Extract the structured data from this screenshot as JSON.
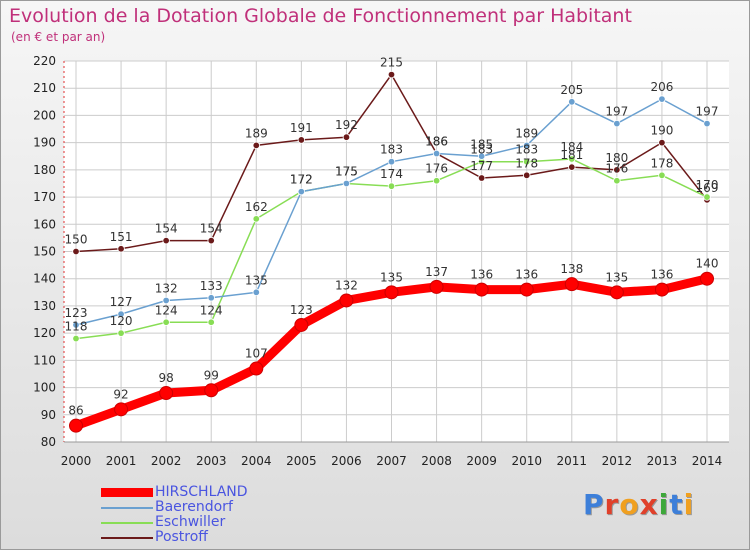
{
  "header": {
    "title": "Evolution de la Dotation Globale de Fonctionnement par Habitant",
    "subtitle": "(en € et par an)"
  },
  "logo": {
    "text": "Proxiti",
    "letters": [
      "P",
      "r",
      "o",
      "x",
      "i",
      "t",
      "i"
    ],
    "colors": [
      "#3d7fd9",
      "#e0402a",
      "#f0a020",
      "#e0402a",
      "#3da83a",
      "#3d7fd9",
      "#f0a020"
    ]
  },
  "chart_data": {
    "type": "line",
    "title": "Evolution de la Dotation Globale de Fonctionnement par Habitant",
    "subtitle": "(en € et par an)",
    "x": [
      2000,
      2001,
      2002,
      2003,
      2004,
      2005,
      2006,
      2007,
      2008,
      2009,
      2010,
      2011,
      2012,
      2013,
      2014
    ],
    "ylim": [
      80,
      220
    ],
    "yticks": [
      80,
      90,
      100,
      110,
      120,
      130,
      140,
      150,
      160,
      170,
      180,
      190,
      200,
      210,
      220
    ],
    "grid": true,
    "legend_position": "bottom-left",
    "series": [
      {
        "name": "Postroff",
        "color": "#6b1a1a",
        "values": [
          150,
          151,
          154,
          154,
          189,
          191,
          192,
          215,
          186,
          177,
          178,
          181,
          180,
          190,
          169
        ]
      },
      {
        "name": "Eschwiller",
        "color": "#88dd55",
        "values": [
          118,
          120,
          124,
          124,
          162,
          172,
          175,
          174,
          176,
          183,
          183,
          184,
          176,
          178,
          170
        ]
      },
      {
        "name": "Baerendorf",
        "color": "#6aa0d0",
        "values": [
          123,
          127,
          132,
          133,
          135,
          172,
          175,
          183,
          186,
          185,
          189,
          205,
          197,
          206,
          197
        ]
      },
      {
        "name": "HIRSCHLAND",
        "color": "#ff0000",
        "values": [
          86,
          92,
          98,
          99,
          107,
          123,
          132,
          135,
          137,
          136,
          136,
          138,
          135,
          136,
          140
        ]
      }
    ]
  },
  "legend": [
    {
      "name": "HIRSCHLAND",
      "color": "#ff0000"
    },
    {
      "name": "Baerendorf",
      "color": "#6aa0d0"
    },
    {
      "name": "Eschwiller",
      "color": "#88dd55"
    },
    {
      "name": "Postroff",
      "color": "#6b1a1a"
    }
  ]
}
